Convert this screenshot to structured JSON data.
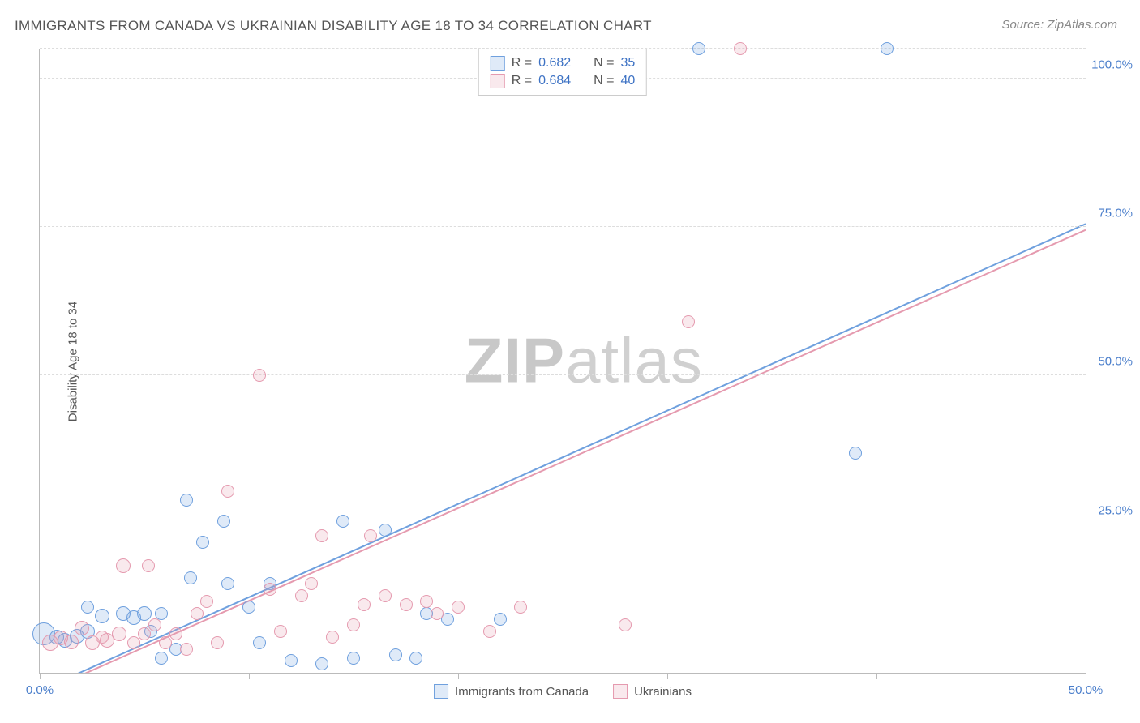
{
  "title": "IMMIGRANTS FROM CANADA VS UKRAINIAN DISABILITY AGE 18 TO 34 CORRELATION CHART",
  "source": "Source: ZipAtlas.com",
  "ylabel": "Disability Age 18 to 34",
  "watermark_bold": "ZIP",
  "watermark_rest": "atlas",
  "chart": {
    "type": "scatter",
    "background_color": "#ffffff",
    "grid_color": "#dddddd",
    "axis_color": "#bbbbbb",
    "tick_label_color": "#4a7ecb",
    "xlim": [
      0,
      50
    ],
    "ylim": [
      0,
      105
    ],
    "xtick_positions": [
      0,
      10,
      20,
      30,
      40,
      50
    ],
    "xtick_labels": [
      "0.0%",
      "",
      "",
      "",
      "",
      "50.0%"
    ],
    "ytick_positions": [
      25,
      50,
      75,
      100,
      105
    ],
    "ytick_labels": [
      "25.0%",
      "50.0%",
      "75.0%",
      "100.0%",
      ""
    ],
    "point_radius": 8,
    "point_border_width": 1.5,
    "point_fill_opacity": 0.22,
    "series": [
      {
        "name": "Immigrants from Canada",
        "color": "#6fa0de",
        "fill": "rgba(111,160,222,0.22)",
        "R": "0.682",
        "N": "35",
        "trend": {
          "x1": 0,
          "y1": -3,
          "x2": 50,
          "y2": 75.5,
          "width": 2
        },
        "points": [
          [
            0.2,
            6.5,
            14
          ],
          [
            0.8,
            6,
            9
          ],
          [
            1.2,
            5.5,
            9
          ],
          [
            1.8,
            6.2,
            9
          ],
          [
            2.3,
            7,
            9
          ],
          [
            2.3,
            11,
            8
          ],
          [
            3.0,
            9.5,
            9
          ],
          [
            4.0,
            10,
            9
          ],
          [
            4.5,
            9.3,
            9
          ],
          [
            5.0,
            10.0,
            9
          ],
          [
            5.3,
            7,
            8
          ],
          [
            5.8,
            2.5,
            8
          ],
          [
            5.8,
            10,
            8
          ],
          [
            6.5,
            4,
            8
          ],
          [
            7.0,
            29,
            8
          ],
          [
            7.2,
            16,
            8
          ],
          [
            7.8,
            22,
            8
          ],
          [
            8.8,
            25.5,
            8
          ],
          [
            9.0,
            15,
            8
          ],
          [
            10.0,
            11,
            8
          ],
          [
            10.5,
            5,
            8
          ],
          [
            11.0,
            15,
            8
          ],
          [
            12.0,
            2,
            8
          ],
          [
            13.5,
            1.5,
            8
          ],
          [
            14.5,
            25.5,
            8
          ],
          [
            15.0,
            2.5,
            8
          ],
          [
            16.5,
            24,
            8
          ],
          [
            17.0,
            3,
            8
          ],
          [
            18.0,
            2.5,
            8
          ],
          [
            18.5,
            10,
            8
          ],
          [
            19.5,
            9,
            8
          ],
          [
            22.0,
            9,
            8
          ],
          [
            31.5,
            105,
            8
          ],
          [
            39.0,
            37,
            8
          ],
          [
            40.5,
            105,
            8
          ]
        ]
      },
      {
        "name": "Ukrainians",
        "color": "#e59aaf",
        "fill": "rgba(229,154,175,0.22)",
        "R": "0.684",
        "N": "40",
        "trend": {
          "x1": 0,
          "y1": -3.5,
          "x2": 50,
          "y2": 74.5,
          "width": 2
        },
        "points": [
          [
            0.5,
            5.0,
            10
          ],
          [
            1.0,
            5.8,
            9
          ],
          [
            1.5,
            5.2,
            9
          ],
          [
            2.0,
            7.5,
            9
          ],
          [
            2.5,
            5.0,
            9
          ],
          [
            3.2,
            5.5,
            9
          ],
          [
            3.8,
            6.5,
            9
          ],
          [
            4.0,
            18,
            9
          ],
          [
            4.5,
            5,
            8
          ],
          [
            5.0,
            6.5,
            8
          ],
          [
            5.2,
            18,
            8
          ],
          [
            5.5,
            8,
            8
          ],
          [
            6.0,
            5,
            8
          ],
          [
            6.5,
            6.5,
            8
          ],
          [
            7.0,
            4,
            8
          ],
          [
            8.0,
            12,
            8
          ],
          [
            8.5,
            5,
            8
          ],
          [
            9.0,
            30.5,
            8
          ],
          [
            10.5,
            50,
            8
          ],
          [
            11.0,
            14,
            8
          ],
          [
            11.5,
            7,
            8
          ],
          [
            12.5,
            13,
            8
          ],
          [
            13.0,
            15,
            8
          ],
          [
            13.5,
            23,
            8
          ],
          [
            14.0,
            6,
            8
          ],
          [
            15.5,
            11.5,
            8
          ],
          [
            15.8,
            23,
            8
          ],
          [
            16.5,
            13,
            8
          ],
          [
            17.5,
            11.5,
            8
          ],
          [
            18.5,
            12,
            8
          ],
          [
            20.0,
            11,
            8
          ],
          [
            21.5,
            7,
            8
          ],
          [
            23.0,
            11,
            8
          ],
          [
            28.0,
            8,
            8
          ],
          [
            31.0,
            59,
            8
          ],
          [
            33.5,
            105,
            8
          ],
          [
            15.0,
            8,
            8
          ],
          [
            19.0,
            10,
            8
          ],
          [
            7.5,
            10,
            8
          ],
          [
            3.0,
            6,
            8
          ]
        ]
      }
    ],
    "legend_top": {
      "R_label": "R =",
      "N_label": "N =",
      "value_color": "#3d72c4",
      "label_color": "#555555"
    },
    "legend_bottom_text_color": "#555555"
  }
}
